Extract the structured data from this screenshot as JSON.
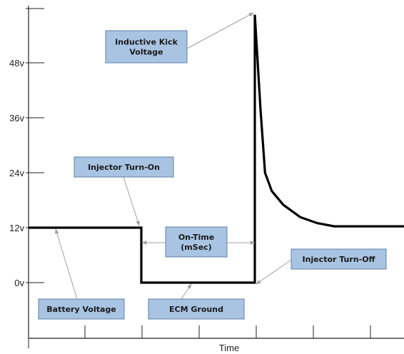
{
  "chart_data": {
    "type": "line",
    "title": "",
    "xlabel": "Time",
    "ylabel": "",
    "y_ticks": [
      {
        "value": 0,
        "label": "0v"
      },
      {
        "value": 12,
        "label": "12v"
      },
      {
        "value": 24,
        "label": "24v"
      },
      {
        "value": 36,
        "label": "36v"
      },
      {
        "value": 48,
        "label": "48v"
      }
    ],
    "x_divisions": 7,
    "ylim": [
      -12,
      60
    ],
    "xlim": [
      0,
      7
    ],
    "series": [
      {
        "points": [
          [
            0,
            12
          ],
          [
            2,
            12
          ],
          [
            2,
            0
          ],
          [
            4,
            0
          ],
          [
            4,
            58.5
          ],
          [
            4.1,
            38
          ],
          [
            4.18,
            24
          ],
          [
            4.3,
            20
          ],
          [
            4.5,
            17
          ],
          [
            4.8,
            14.3
          ],
          [
            5.1,
            13
          ],
          [
            5.4,
            12.3
          ],
          [
            7,
            12.3
          ]
        ]
      }
    ],
    "annotations": [
      {
        "lines": [
          "Inductive Kick",
          "Voltage"
        ]
      },
      {
        "lines": [
          "Injector Turn-On"
        ]
      },
      {
        "lines": [
          "On-Time",
          "(mSec)"
        ]
      },
      {
        "lines": [
          "Injector Turn-Off"
        ]
      },
      {
        "lines": [
          "Battery Voltage"
        ]
      },
      {
        "lines": [
          "ECM Ground"
        ]
      }
    ],
    "grid": false,
    "colors": {
      "signal": "#000000",
      "callout_fill": "#a8c4e2",
      "callout_border": "#5f80a8",
      "leader": "#a0a0a0"
    }
  }
}
